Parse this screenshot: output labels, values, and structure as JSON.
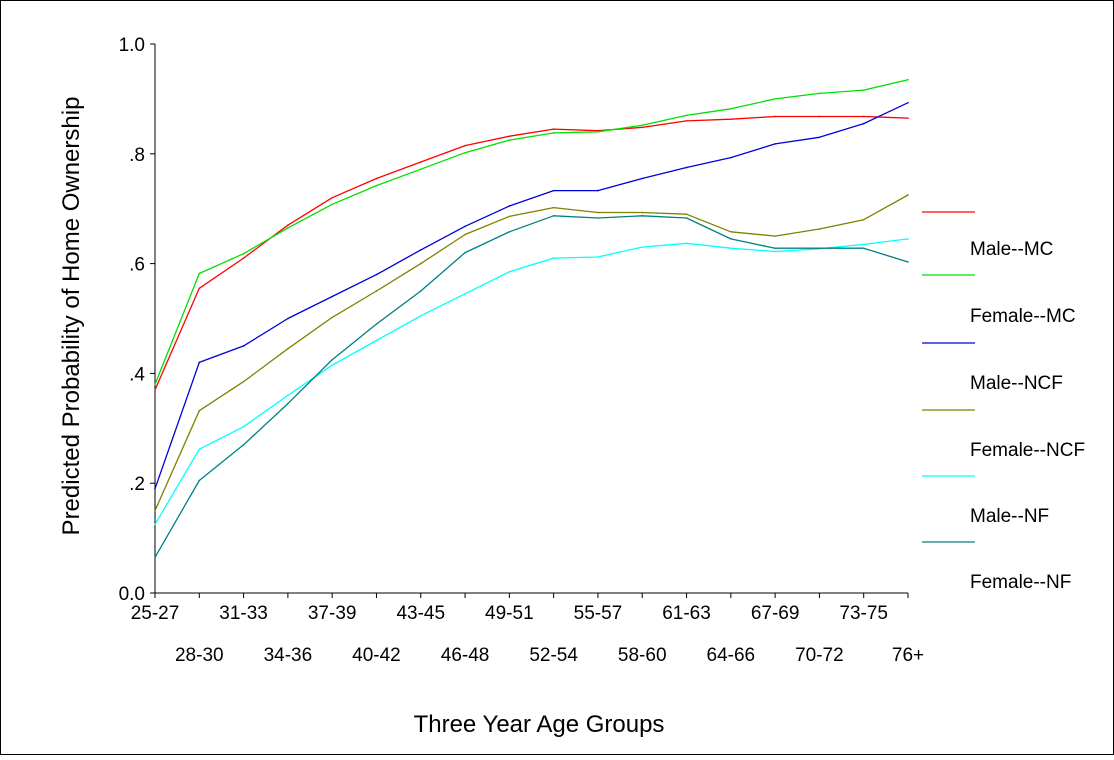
{
  "chart_data": {
    "type": "line",
    "title": "",
    "xlabel": "Three Year Age Groups",
    "ylabel": "Predicted Probability of Home Ownership",
    "ylim": [
      0,
      1
    ],
    "yticks": [
      {
        "value": 0.0,
        "label": "0.0"
      },
      {
        "value": 0.2,
        "label": ".2"
      },
      {
        "value": 0.4,
        "label": ".4"
      },
      {
        "value": 0.6,
        "label": ".6"
      },
      {
        "value": 0.8,
        "label": ".8"
      },
      {
        "value": 1.0,
        "label": "1.0"
      }
    ],
    "categories": [
      "25-27",
      "28-30",
      "31-33",
      "34-36",
      "37-39",
      "40-42",
      "43-45",
      "46-48",
      "49-51",
      "52-54",
      "55-57",
      "58-60",
      "61-63",
      "64-66",
      "67-69",
      "70-72",
      "73-75",
      "76+"
    ],
    "grid": false,
    "legend_position": "right",
    "series": [
      {
        "name": "",
        "color": "#ff0000",
        "values": [
          0.37,
          0.555,
          0.61,
          0.67,
          0.72,
          0.755,
          0.785,
          0.815,
          0.832,
          0.845,
          0.842,
          0.848,
          0.86,
          0.863,
          0.868,
          0.868,
          0.868,
          0.865
        ]
      },
      {
        "name": "Male--MC",
        "color": "#00e000",
        "values": [
          0.38,
          0.582,
          0.618,
          0.665,
          0.708,
          0.742,
          0.772,
          0.802,
          0.825,
          0.838,
          0.84,
          0.852,
          0.87,
          0.882,
          0.9,
          0.91,
          0.916,
          0.935
        ]
      },
      {
        "name": "Female--MC",
        "color": "#0000dd",
        "values": [
          0.19,
          0.42,
          0.45,
          0.5,
          0.54,
          0.58,
          0.625,
          0.668,
          0.705,
          0.733,
          0.733,
          0.755,
          0.775,
          0.793,
          0.818,
          0.83,
          0.855,
          0.893
        ]
      },
      {
        "name": "Male--NCF",
        "color": "#808000",
        "values": [
          0.15,
          0.332,
          0.385,
          0.445,
          0.502,
          0.55,
          0.6,
          0.653,
          0.686,
          0.702,
          0.693,
          0.693,
          0.69,
          0.658,
          0.65,
          0.663,
          0.68,
          0.725
        ]
      },
      {
        "name": "Female--NCF",
        "color": "#00ffff",
        "values": [
          0.125,
          0.262,
          0.303,
          0.36,
          0.415,
          0.46,
          0.505,
          0.545,
          0.585,
          0.61,
          0.612,
          0.63,
          0.637,
          0.628,
          0.622,
          0.627,
          0.635,
          0.645
        ]
      },
      {
        "name": "Male--NF",
        "color": "#008080",
        "values": [
          0.065,
          0.205,
          0.27,
          0.345,
          0.425,
          0.49,
          0.55,
          0.62,
          0.658,
          0.687,
          0.683,
          0.687,
          0.683,
          0.645,
          0.628,
          0.628,
          0.628,
          0.603
        ]
      }
    ],
    "extra_legend_label": "Female--NF"
  }
}
